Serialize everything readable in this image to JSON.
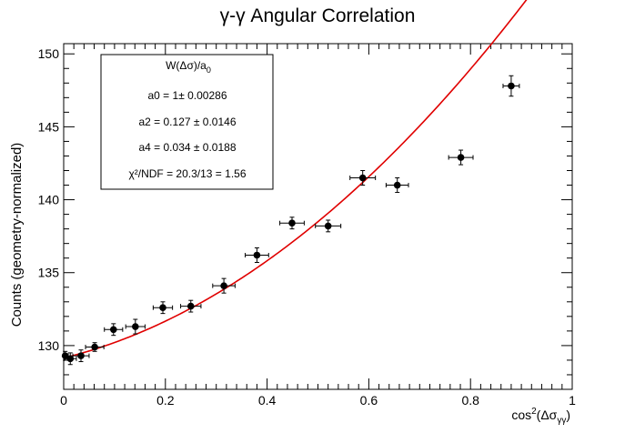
{
  "chart_data": {
    "type": "scatter",
    "title": "γ-γ Angular Correlation",
    "xlabel_main": "cos",
    "xlabel_sup": "2",
    "xlabel_rest": "(Δσ",
    "xlabel_sub": "γγ",
    "xlabel_close": ")",
    "ylabel": "Counts (geometry-normalized)",
    "xlim": [
      0,
      1
    ],
    "ylim": [
      127,
      150.7
    ],
    "x_ticks": [
      0,
      0.2,
      0.4,
      0.6,
      0.8,
      1
    ],
    "x_tick_labels": [
      "0",
      "0.2",
      "0.4",
      "0.6",
      "0.8",
      "1"
    ],
    "y_ticks": [
      130,
      135,
      140,
      145,
      150
    ],
    "y_tick_labels": [
      "130",
      "135",
      "140",
      "145",
      "150"
    ],
    "grid": false,
    "points": [
      {
        "x": 0.003,
        "y": 129.3,
        "xerr": 0.006,
        "yerr": 0.3
      },
      {
        "x": 0.013,
        "y": 129.1,
        "xerr": 0.012,
        "yerr": 0.4
      },
      {
        "x": 0.034,
        "y": 129.3,
        "xerr": 0.016,
        "yerr": 0.4
      },
      {
        "x": 0.061,
        "y": 129.9,
        "xerr": 0.018,
        "yerr": 0.3
      },
      {
        "x": 0.098,
        "y": 131.1,
        "xerr": 0.018,
        "yerr": 0.4
      },
      {
        "x": 0.141,
        "y": 131.3,
        "xerr": 0.019,
        "yerr": 0.5
      },
      {
        "x": 0.195,
        "y": 132.6,
        "xerr": 0.019,
        "yerr": 0.4
      },
      {
        "x": 0.25,
        "y": 132.7,
        "xerr": 0.02,
        "yerr": 0.4
      },
      {
        "x": 0.315,
        "y": 134.1,
        "xerr": 0.022,
        "yerr": 0.5
      },
      {
        "x": 0.38,
        "y": 136.2,
        "xerr": 0.023,
        "yerr": 0.5
      },
      {
        "x": 0.449,
        "y": 138.4,
        "xerr": 0.024,
        "yerr": 0.4
      },
      {
        "x": 0.52,
        "y": 138.2,
        "xerr": 0.025,
        "yerr": 0.4
      },
      {
        "x": 0.588,
        "y": 141.5,
        "xerr": 0.025,
        "yerr": 0.5
      },
      {
        "x": 0.656,
        "y": 141.0,
        "xerr": 0.022,
        "yerr": 0.5
      },
      {
        "x": 0.781,
        "y": 142.9,
        "xerr": 0.024,
        "yerr": 0.5
      },
      {
        "x": 0.88,
        "y": 147.8,
        "xerr": 0.016,
        "yerr": 0.7
      }
    ],
    "fit": {
      "color": "#e00000",
      "a0": 1,
      "a2": 0.127,
      "a4": 0.034,
      "norm": 129.15
    },
    "stats_box": {
      "title_main": "W(Δσ)/a",
      "title_sub": "0",
      "line_a0": "a0 = 1± 0.00286",
      "line_a2": "a2 = 0.127 ± 0.0146",
      "line_a4": "a4 = 0.034 ± 0.0188",
      "line_chi2": "χ²/NDF = 20.3/13 = 1.56"
    }
  }
}
